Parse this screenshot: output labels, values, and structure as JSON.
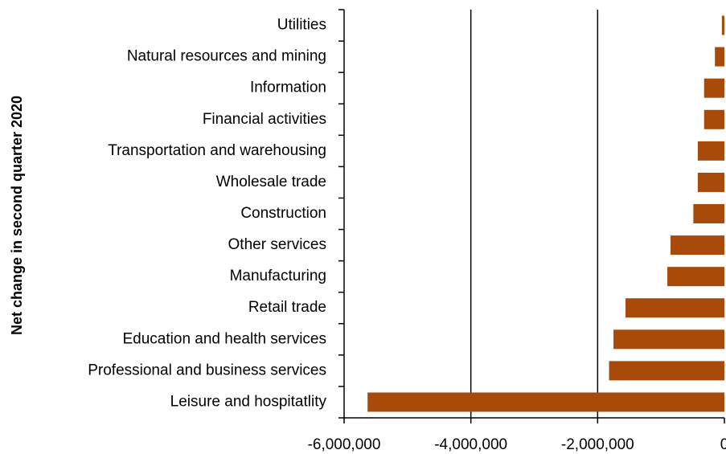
{
  "chart_data": {
    "type": "bar",
    "orientation": "horizontal",
    "y_label": "Net change in second quarter 2020",
    "categories": [
      "Utilities",
      "Natural resources and mining",
      "Information",
      "Financial activities",
      "Transportation and warehousing",
      "Wholesale trade",
      "Construction",
      "Other services",
      "Manufacturing",
      "Retail trade",
      "Education and health services",
      "Professional and business services",
      "Leisure and hospitatlity"
    ],
    "values": [
      -40000,
      -150000,
      -320000,
      -320000,
      -420000,
      -420000,
      -490000,
      -850000,
      -900000,
      -1560000,
      -1750000,
      -1820000,
      -5630000
    ],
    "color": "#a84b0a",
    "xlim": [
      -6000000,
      0
    ],
    "xticks": [
      {
        "value": -6000000,
        "label": "-6,000,000"
      },
      {
        "value": -4000000,
        "label": "-4,000,000"
      },
      {
        "value": -2000000,
        "label": "-2,000,000"
      },
      0
    ],
    "grid": true
  }
}
